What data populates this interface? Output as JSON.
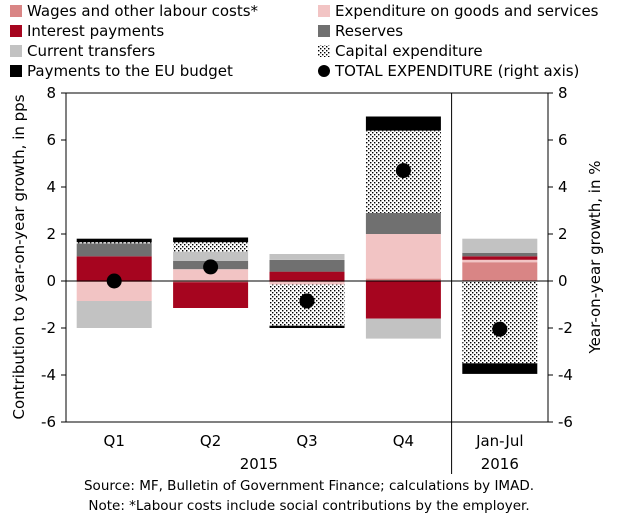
{
  "chart_data": {
    "type": "bar",
    "stacked": true,
    "categories": [
      "Q1",
      "Q2",
      "Q3",
      "Q4",
      "Jan-Jul"
    ],
    "group_labels": [
      {
        "label": "2015",
        "categories": [
          "Q1",
          "Q2",
          "Q3",
          "Q4"
        ]
      },
      {
        "label": "2016",
        "categories": [
          "Jan-Jul"
        ]
      }
    ],
    "ylabel": "Contribution to year-on-year growth, in pps",
    "ylabel_right": "Year-on-year growth, in %",
    "ylim": [
      -6,
      8
    ],
    "ylim_right": [
      -6,
      8
    ],
    "yticks": [
      -6,
      -4,
      -2,
      0,
      2,
      4,
      6,
      8
    ],
    "series": [
      {
        "name": "Wages and other labour costs*",
        "color": "#d98585",
        "pattern": "solid",
        "values": [
          -0.05,
          -0.05,
          -0.05,
          0.1,
          0.8
        ]
      },
      {
        "name": "Expenditure on goods and services",
        "color": "#f2c4c4",
        "pattern": "solid",
        "values": [
          -0.8,
          0.5,
          -0.1,
          1.9,
          0.1
        ]
      },
      {
        "name": "Interest payments",
        "color": "#a6051f",
        "pattern": "solid",
        "values": [
          1.05,
          -1.1,
          0.4,
          -1.6,
          0.15
        ]
      },
      {
        "name": "Reserves",
        "color": "#707070",
        "pattern": "solid",
        "values": [
          0.55,
          0.35,
          0.5,
          0.9,
          0.15
        ]
      },
      {
        "name": "Current transfers",
        "color": "#c2c2c2",
        "pattern": "solid",
        "values": [
          -1.15,
          0.4,
          0.25,
          -0.85,
          0.6
        ]
      },
      {
        "name": "Capital expenditure",
        "color": "#000000",
        "pattern": "hatch",
        "values": [
          0.05,
          0.4,
          -1.75,
          3.5,
          -3.5
        ]
      },
      {
        "name": "Payments to the EU budget",
        "color": "#000000",
        "pattern": "solid",
        "values": [
          0.15,
          0.2,
          -0.1,
          0.6,
          -0.45
        ]
      }
    ],
    "total": {
      "name": "TOTAL EXPENDITURE (right axis)",
      "axis": "right",
      "values": [
        0.0,
        0.6,
        -0.85,
        4.7,
        -2.05
      ]
    },
    "separator_after": "Q4",
    "legend_position": "top",
    "grid": false
  },
  "footnotes": {
    "source": "Source: MF, Bulletin of Government Finance; calculations by IMAD.",
    "note": "Note: *Labour costs include social contributions by the employer."
  }
}
